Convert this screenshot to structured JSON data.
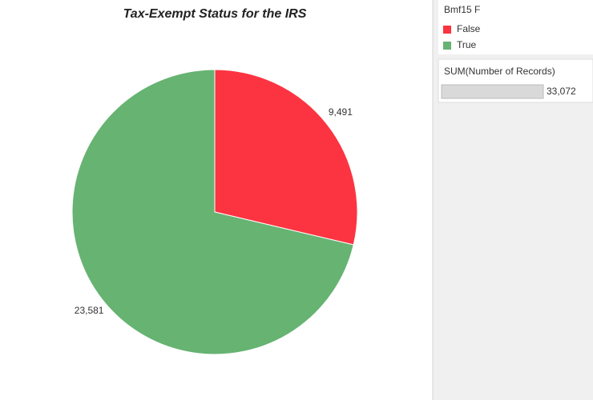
{
  "chart_data": {
    "type": "pie",
    "title": "Tax-Exempt Status for the IRS",
    "legend_title": "Bmf15 F",
    "categories": [
      "False",
      "True"
    ],
    "values": [
      9491,
      23581
    ],
    "value_labels": [
      "9,491",
      "23,581"
    ],
    "colors": [
      "#fc3441",
      "#66b372"
    ],
    "size_legend": {
      "title": "SUM(Number of Records)",
      "value": 33072,
      "label": "33,072"
    }
  }
}
